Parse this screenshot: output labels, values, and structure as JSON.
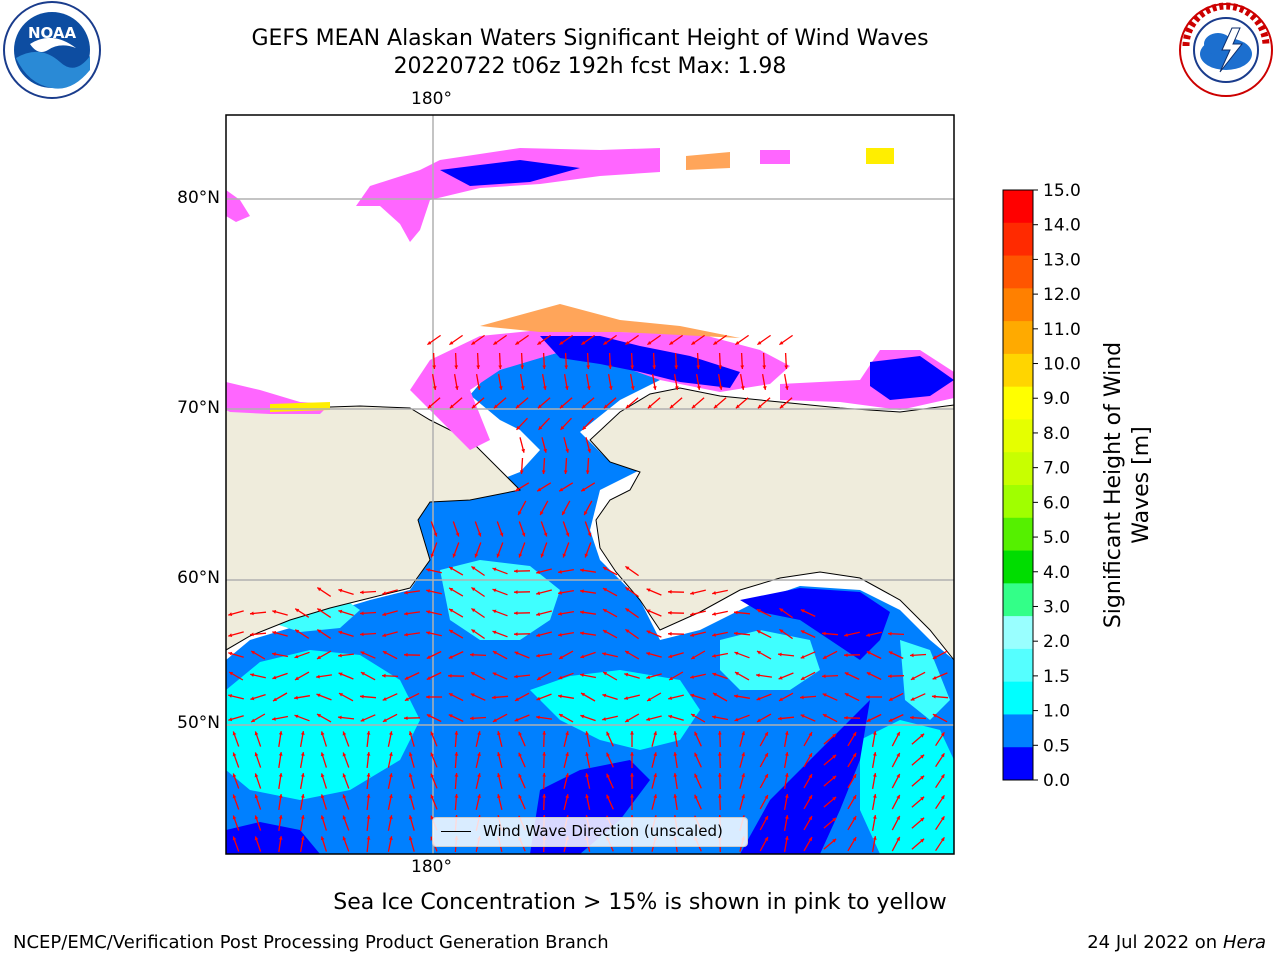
{
  "title": {
    "line1": "GEFS MEAN Alaskan Waters Significant Height of Wind Waves",
    "line2": "20220722 t06z 192h fcst   Max: 1.98"
  },
  "logos": {
    "left": {
      "icon": "noaa-logo",
      "text": "NOAA"
    },
    "right": {
      "icon": "nws-logo",
      "text": "NATIONAL WEATHER SERVICE"
    }
  },
  "map": {
    "lon_labels": {
      "top": "180°",
      "bottom": "180°"
    },
    "lat_labels": [
      "80°N",
      "70°N",
      "60°N",
      "50°N"
    ],
    "colors": {
      "land": "#efecdc",
      "ocean_level_0": "#0000ff",
      "ocean_level_1": "#0080ff",
      "ocean_level_2": "#00ffff",
      "ocean_level_3": "#3fffff",
      "ice_pink": "#ff66ff",
      "ice_orange": "#ffa55a",
      "ice_yellow": "#ffee00",
      "wave_arrow": "#ff0000",
      "grid": "#b0b0b0"
    },
    "legend": {
      "label": "Wind Wave Direction (unscaled)"
    }
  },
  "colorbar": {
    "label": "Significant Height of Wind\nWaves [m]",
    "ticks": [
      "15.0",
      "14.0",
      "13.0",
      "12.0",
      "11.0",
      "10.0",
      "9.0",
      "8.0",
      "7.0",
      "6.0",
      "5.0",
      "4.0",
      "3.0",
      "2.0",
      "1.5",
      "1.0",
      "0.5",
      "0.0"
    ],
    "colors": [
      "#ff0000",
      "#ff2a00",
      "#ff5500",
      "#ff8000",
      "#ffaa00",
      "#ffd500",
      "#ffff00",
      "#e5ff00",
      "#c8ff00",
      "#a0ff00",
      "#55f000",
      "#00dd00",
      "#33ff88",
      "#99ffff",
      "#55ffff",
      "#00ffff",
      "#0080ff",
      "#0000ff"
    ]
  },
  "caption": "Sea Ice Concentration > 15% is shown in pink to yellow",
  "footer": {
    "left": "NCEP/EMC/Verification Post Processing Product Generation Branch",
    "right_date": "24 Jul 2022 on ",
    "right_machine": "Hera"
  }
}
